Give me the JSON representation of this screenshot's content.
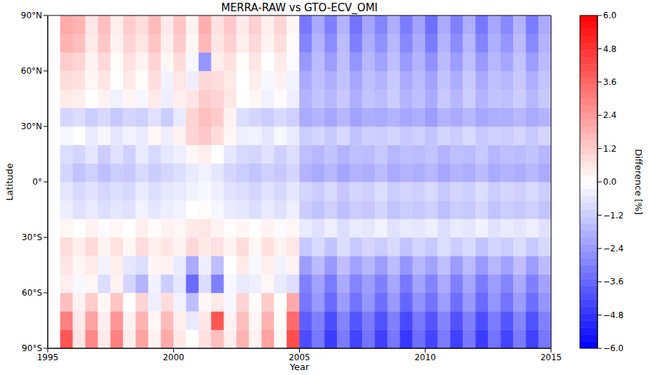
{
  "chart_data": {
    "type": "heatmap",
    "title": "MERRA-RAW  vs  GTO-ECV_OMI",
    "xlabel": "Year",
    "ylabel": "Latitude",
    "xlim": [
      1995,
      2015
    ],
    "xticks": [
      1995,
      2000,
      2005,
      2010,
      2015
    ],
    "ylim": [
      -90,
      90
    ],
    "yticks": [
      {
        "value": -90,
        "label": "90°S"
      },
      {
        "value": -60,
        "label": "60°S"
      },
      {
        "value": -30,
        "label": "30°S"
      },
      {
        "value": 0,
        "label": "0°"
      },
      {
        "value": 30,
        "label": "30°N"
      },
      {
        "value": 60,
        "label": "60°N"
      },
      {
        "value": 90,
        "label": "90°N"
      }
    ],
    "x": [
      1995.5,
      1996,
      1996.5,
      1997,
      1997.5,
      1998,
      1998.5,
      1999,
      1999.5,
      2000,
      2000.5,
      2001,
      2001.5,
      2002,
      2002.5,
      2003,
      2003.5,
      2004,
      2004.5,
      2005,
      2005.5,
      2006,
      2006.5,
      2007,
      2007.5,
      2008,
      2008.5,
      2009,
      2009.5,
      2010,
      2010.5,
      2011,
      2011.5,
      2012,
      2012.5,
      2013,
      2013.5,
      2014,
      2014.5
    ],
    "y": [
      -90,
      -80,
      -70,
      -60,
      -50,
      -40,
      -30,
      -20,
      -10,
      0,
      10,
      20,
      30,
      40,
      50,
      60,
      70,
      80
    ],
    "cells": [
      [
        4.0,
        0.6,
        2.8,
        0.5,
        3.0,
        0.4,
        2.2,
        0.3,
        2.0,
        0.5,
        0.0,
        0.7,
        1.5,
        0.4,
        1.8,
        0.3,
        2.2,
        0.2,
        4.2,
        -4.2,
        -3.2,
        -4.6,
        -3.1,
        -4.4,
        -3.3,
        -4.5,
        -3.2,
        -4.7,
        -3.4,
        -4.4,
        -3.1,
        -4.5,
        -3.2,
        -4.6,
        -3.3,
        -4.4,
        -3.1,
        -4.5,
        -3.2
      ],
      [
        3.0,
        0.5,
        2.2,
        0.4,
        2.5,
        0.3,
        1.8,
        0.2,
        1.6,
        0.4,
        -0.5,
        0.6,
        4.0,
        0.3,
        1.5,
        0.2,
        1.8,
        0.1,
        3.5,
        -3.8,
        -3.0,
        -4.2,
        -2.9,
        -4.0,
        -3.1,
        -4.1,
        -3.0,
        -4.3,
        -3.2,
        -4.0,
        -2.9,
        -4.1,
        -3.0,
        -4.2,
        -3.1,
        -4.0,
        -2.9,
        -4.1,
        -3.0
      ],
      [
        1.5,
        0.3,
        1.2,
        0.2,
        1.4,
        0.0,
        1.0,
        -0.4,
        0.8,
        -0.3,
        -1.5,
        0.2,
        0.5,
        -0.2,
        1.0,
        0.1,
        1.2,
        0.0,
        2.0,
        -3.2,
        -2.4,
        -3.5,
        -2.3,
        -3.3,
        -2.5,
        -3.4,
        -2.4,
        -3.6,
        -2.6,
        -3.3,
        -2.3,
        -3.4,
        -2.4,
        -3.5,
        -2.5,
        -3.3,
        -2.3,
        -3.4,
        -2.5
      ],
      [
        0.4,
        -0.2,
        0.2,
        -0.8,
        0.3,
        -1.0,
        -1.8,
        -0.3,
        -1.2,
        -0.6,
        -3.5,
        -0.8,
        -3.0,
        -0.2,
        -0.5,
        -0.4,
        0.2,
        -0.5,
        -0.8,
        -3.0,
        -2.2,
        -3.1,
        -2.0,
        -2.9,
        -2.3,
        -3.0,
        -2.1,
        -3.2,
        -2.2,
        -2.9,
        -2.0,
        -3.0,
        -2.1,
        -3.1,
        -2.3,
        -2.9,
        -2.0,
        -3.0,
        -2.2
      ],
      [
        0.6,
        0.2,
        0.5,
        -0.3,
        0.4,
        -0.6,
        -0.8,
        0.2,
        0.3,
        -0.5,
        -2.0,
        -0.4,
        -1.5,
        0.0,
        0.5,
        -0.2,
        0.4,
        -0.3,
        0.3,
        -2.3,
        -1.6,
        -2.4,
        -1.5,
        -2.2,
        -1.7,
        -2.3,
        -1.6,
        -2.5,
        -1.7,
        -2.2,
        -1.5,
        -2.3,
        -1.6,
        -2.4,
        -1.7,
        -2.2,
        -1.5,
        -2.3,
        -1.6
      ],
      [
        0.8,
        0.4,
        0.9,
        0.3,
        0.7,
        0.2,
        0.8,
        0.4,
        0.6,
        0.3,
        0.9,
        0.5,
        0.7,
        0.3,
        0.8,
        0.2,
        0.7,
        0.3,
        0.6,
        -1.3,
        -0.9,
        -1.4,
        -0.8,
        -1.3,
        -1.0,
        -1.2,
        -0.9,
        -1.4,
        -1.0,
        -1.3,
        -0.8,
        -1.2,
        -0.9,
        -1.4,
        -1.0,
        -1.2,
        -0.8,
        -1.3,
        -0.9
      ],
      [
        0.2,
        0.0,
        0.3,
        -0.1,
        0.2,
        0.0,
        0.4,
        0.1,
        0.3,
        0.2,
        0.5,
        0.6,
        0.3,
        0.1,
        0.2,
        0.0,
        0.3,
        -0.1,
        0.2,
        -0.5,
        -0.7,
        -0.4,
        -0.8,
        -0.5,
        -0.6,
        -0.3,
        -0.7,
        -0.5,
        -0.6,
        -0.4,
        -0.8,
        -0.5,
        -0.6,
        -0.3,
        -0.7,
        -0.5,
        -0.6,
        -0.4,
        -0.7
      ],
      [
        -0.4,
        -0.7,
        -0.5,
        -0.8,
        -0.6,
        -0.7,
        -0.3,
        -0.6,
        -0.4,
        -0.3,
        0.0,
        0.1,
        -0.2,
        -0.5,
        -0.6,
        -0.8,
        -0.5,
        -0.7,
        -0.4,
        -1.2,
        -1.4,
        -1.1,
        -1.5,
        -1.2,
        -1.3,
        -1.0,
        -1.4,
        -1.2,
        -1.3,
        -1.1,
        -1.5,
        -1.2,
        -1.3,
        -1.0,
        -1.4,
        -1.2,
        -1.3,
        -1.1,
        -1.4
      ],
      [
        -0.6,
        -0.9,
        -0.7,
        -1.0,
        -0.8,
        -0.9,
        -0.5,
        -0.8,
        -0.6,
        -0.5,
        -0.3,
        -0.2,
        -0.4,
        -0.7,
        -0.8,
        -1.0,
        -0.7,
        -0.9,
        -0.6,
        -1.0,
        -1.2,
        -0.9,
        -1.3,
        -1.0,
        -1.1,
        -0.8,
        -1.2,
        -1.0,
        -1.1,
        -0.9,
        -1.3,
        -1.0,
        -1.1,
        -0.8,
        -1.2,
        -1.0,
        -1.1,
        -0.9,
        -1.2
      ],
      [
        -1.0,
        -1.4,
        -1.1,
        -1.5,
        -1.2,
        -1.3,
        -0.9,
        -1.2,
        -1.0,
        -0.8,
        -0.5,
        -0.3,
        -0.6,
        -1.0,
        -1.2,
        -1.4,
        -1.1,
        -1.3,
        -1.0,
        -1.8,
        -2.0,
        -1.7,
        -2.1,
        -1.8,
        -1.9,
        -1.6,
        -2.0,
        -1.8,
        -1.9,
        -1.7,
        -2.1,
        -1.8,
        -1.9,
        -1.6,
        -2.0,
        -1.8,
        -1.9,
        -1.7,
        -2.0
      ],
      [
        -0.8,
        -1.0,
        -0.6,
        -1.2,
        -0.7,
        -1.1,
        -0.5,
        -0.9,
        -0.6,
        -0.4,
        0.2,
        0.4,
        0.0,
        -0.6,
        -0.9,
        -1.0,
        -0.7,
        -1.1,
        -0.8,
        -1.5,
        -1.7,
        -1.4,
        -1.8,
        -1.5,
        -1.6,
        -1.3,
        -1.7,
        -1.5,
        -1.6,
        -1.4,
        -1.8,
        -1.5,
        -1.6,
        -1.3,
        -1.7,
        -1.5,
        -1.6,
        -1.4,
        -1.7
      ],
      [
        -0.2,
        0.0,
        -0.5,
        -0.2,
        -0.6,
        -0.3,
        -0.5,
        0.2,
        -0.4,
        0.3,
        1.0,
        1.3,
        0.8,
        0.2,
        -0.4,
        -0.3,
        -0.6,
        -0.2,
        -0.5,
        -1.2,
        -1.0,
        -1.3,
        -0.9,
        -1.4,
        -1.1,
        -1.2,
        -1.0,
        -1.3,
        -1.1,
        -1.4,
        -1.0,
        -1.2,
        -0.9,
        -1.3,
        -1.1,
        -1.2,
        -1.0,
        -1.3,
        -1.0
      ],
      [
        -1.0,
        -0.8,
        -1.2,
        -0.9,
        -1.3,
        -1.0,
        -1.1,
        -0.7,
        -1.2,
        -0.5,
        1.0,
        1.5,
        1.2,
        0.3,
        -0.8,
        -1.0,
        -1.2,
        -0.9,
        -1.1,
        -2.0,
        -1.8,
        -2.1,
        -1.7,
        -2.2,
        -1.9,
        -2.0,
        -1.8,
        -2.1,
        -1.9,
        -2.3,
        -1.8,
        -2.0,
        -1.7,
        -2.1,
        -1.9,
        -1.9,
        -1.7,
        -2.0,
        -1.8
      ],
      [
        0.5,
        0.4,
        0.0,
        0.3,
        -0.3,
        0.2,
        -0.2,
        0.5,
        -0.4,
        0.4,
        0.6,
        1.2,
        1.0,
        0.6,
        0.0,
        0.2,
        -0.3,
        0.1,
        -0.4,
        -1.8,
        -1.4,
        -1.7,
        -1.3,
        -1.9,
        -1.4,
        -1.6,
        -1.2,
        -1.8,
        -1.5,
        -2.0,
        -1.3,
        -1.7,
        -1.2,
        -1.8,
        -1.4,
        -1.5,
        -1.2,
        -1.7,
        -1.3
      ],
      [
        0.8,
        0.7,
        0.2,
        0.6,
        0.0,
        0.5,
        0.1,
        0.8,
        -0.3,
        0.6,
        -0.4,
        0.9,
        0.8,
        0.5,
        0.0,
        0.4,
        -0.2,
        0.3,
        -0.3,
        -2.0,
        -1.5,
        -1.9,
        -1.4,
        -2.1,
        -1.5,
        -1.8,
        -1.3,
        -2.0,
        -1.6,
        -2.2,
        -1.4,
        -1.9,
        -1.3,
        -2.0,
        -1.5,
        -1.7,
        -1.3,
        -1.9,
        -1.4
      ],
      [
        1.2,
        1.0,
        0.3,
        0.9,
        0.1,
        0.7,
        0.3,
        1.0,
        0.2,
        0.8,
        -0.2,
        -2.5,
        0.4,
        0.7,
        0.1,
        0.6,
        0.0,
        0.5,
        -0.1,
        -2.4,
        -1.6,
        -2.3,
        -1.5,
        -2.5,
        -1.7,
        -2.2,
        -1.5,
        -2.4,
        -1.8,
        -2.6,
        -1.6,
        -2.3,
        -1.5,
        -2.4,
        -1.7,
        -2.1,
        -1.4,
        -2.3,
        -1.6
      ],
      [
        1.8,
        1.5,
        0.5,
        1.3,
        0.3,
        1.0,
        0.6,
        1.4,
        0.4,
        1.2,
        0.2,
        1.7,
        0.6,
        1.1,
        0.4,
        0.9,
        0.3,
        0.8,
        0.1,
        -2.9,
        -1.8,
        -2.7,
        -1.6,
        -3.0,
        -1.9,
        -2.6,
        -1.7,
        -2.8,
        -2.0,
        -3.1,
        -1.8,
        -2.7,
        -1.7,
        -2.9,
        -1.9,
        -2.5,
        -1.6,
        -2.8,
        -1.8
      ],
      [
        2.0,
        1.8,
        0.6,
        1.5,
        0.4,
        1.2,
        0.8,
        1.6,
        0.5,
        1.4,
        0.3,
        1.9,
        0.7,
        1.3,
        0.5,
        1.1,
        0.4,
        1.0,
        0.2,
        -3.2,
        -2.0,
        -3.0,
        -1.8,
        -3.3,
        -2.1,
        -2.9,
        -1.9,
        -3.1,
        -2.2,
        -3.4,
        -2.0,
        -3.0,
        -1.9,
        -3.2,
        -2.1,
        -2.8,
        -1.8,
        -3.1,
        -2.0
      ]
    ],
    "colorbar": {
      "label": "Difference [%]",
      "range": [
        -6,
        6
      ],
      "colors": [
        "#0000ff",
        "#ffffff",
        "#ff0000"
      ],
      "ticks": [
        {
          "value": 6,
          "label": "6.0"
        },
        {
          "value": 4.8,
          "label": "4.8"
        },
        {
          "value": 3.6,
          "label": "3.6"
        },
        {
          "value": 2.4,
          "label": "2.4"
        },
        {
          "value": 1.2,
          "label": "1.2"
        },
        {
          "value": 0,
          "label": "0.0"
        },
        {
          "value": -1.2,
          "label": "−1.2"
        },
        {
          "value": -2.4,
          "label": "−2.4"
        },
        {
          "value": -3.6,
          "label": "−3.6"
        },
        {
          "value": -4.8,
          "label": "−4.8"
        },
        {
          "value": -6,
          "label": "−6.0"
        }
      ]
    }
  }
}
